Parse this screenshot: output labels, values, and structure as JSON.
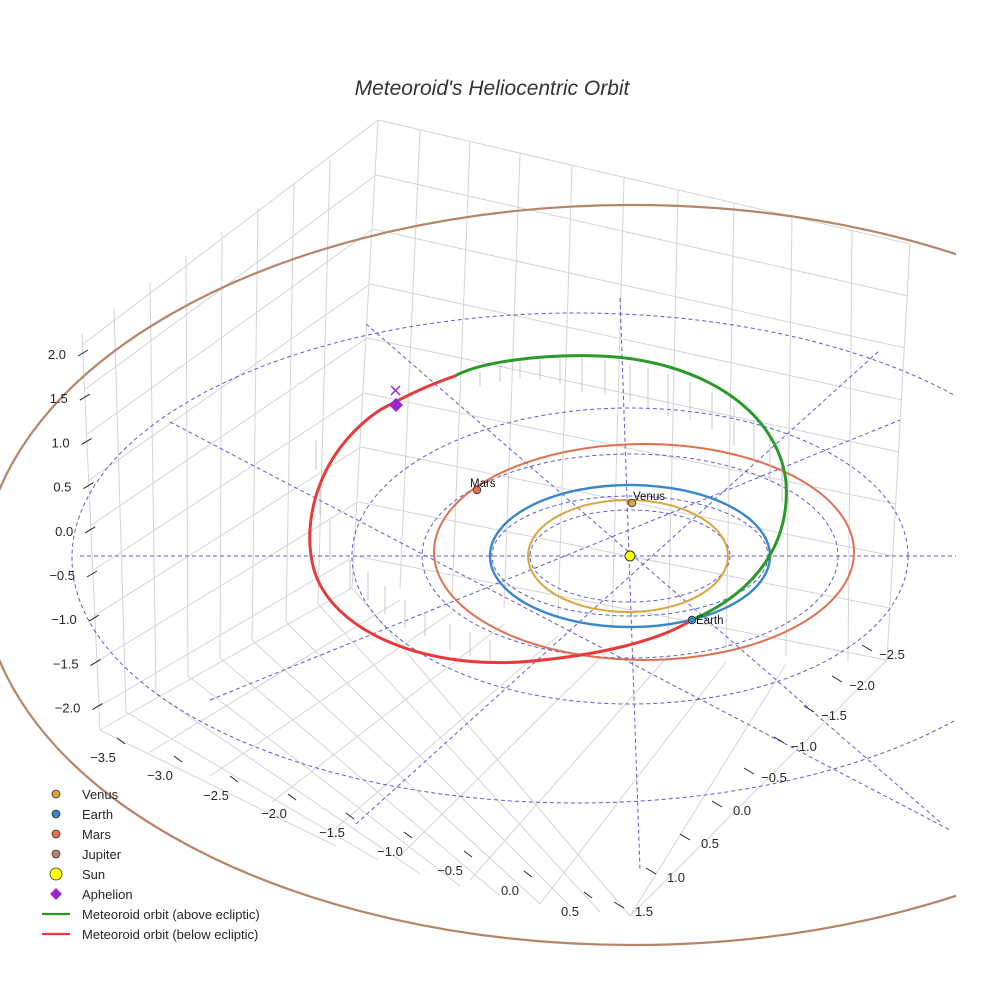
{
  "chart_data": {
    "type": "scatter",
    "projection": "3d",
    "title": "Meteoroid's Heliocentric Orbit",
    "xlabel": "",
    "ylabel": "",
    "zlabel": "",
    "x_ticks": [
      "−3.5",
      "−3.0",
      "−2.5",
      "−2.0",
      "−1.5",
      "−1.0",
      "−0.5",
      "0.0",
      "0.5"
    ],
    "y_ticks": [
      "−2.5",
      "−2.0",
      "−1.5",
      "−1.0",
      "−0.5",
      "0.0",
      "0.5",
      "1.0",
      "1.5"
    ],
    "z_ticks": [
      "2.0",
      "1.5",
      "1.0",
      "0.5",
      "0.0",
      "−0.5",
      "−1.0",
      "−1.5",
      "−2.0"
    ],
    "xlim": [
      -3.5,
      0.5
    ],
    "ylim": [
      -2.5,
      1.5
    ],
    "zlim": [
      -2.0,
      2.0
    ],
    "grid": true,
    "legend_position": "bottom-left",
    "planets": [
      {
        "name": "Venus",
        "label": "Venus",
        "orbit_radius_au": 0.72,
        "color": "#d9a441"
      },
      {
        "name": "Earth",
        "label": "Earth",
        "orbit_radius_au": 1.0,
        "color": "#3a86c8"
      },
      {
        "name": "Mars",
        "label": "Mars",
        "orbit_radius_au": 1.52,
        "color": "#e07050"
      },
      {
        "name": "Jupiter",
        "label": "",
        "orbit_radius_au": 5.2,
        "color": "#b5856a"
      }
    ],
    "sun": {
      "name": "Sun",
      "color": "#ffff00"
    },
    "aphelion": {
      "name": "Aphelion",
      "color": "#9c27c9"
    },
    "series": [
      {
        "name": "Meteoroid orbit (above ecliptic)",
        "color": "#2a9a2a"
      },
      {
        "name": "Meteoroid orbit (below ecliptic)",
        "color": "#e83a3a"
      }
    ],
    "legend": [
      {
        "label": "Venus",
        "marker": "circle",
        "color": "#d9a441"
      },
      {
        "label": "Earth",
        "marker": "circle",
        "color": "#3a86c8"
      },
      {
        "label": "Mars",
        "marker": "circle",
        "color": "#e07050"
      },
      {
        "label": "Jupiter",
        "marker": "circle",
        "color": "#b5856a"
      },
      {
        "label": "Sun",
        "marker": "circle",
        "color": "#ffff00"
      },
      {
        "label": "Aphelion",
        "marker": "diamond",
        "color": "#9c27c9"
      },
      {
        "label": "Meteoroid orbit (above ecliptic)",
        "marker": "line",
        "color": "#2a9a2a"
      },
      {
        "label": "Meteoroid orbit (below ecliptic)",
        "marker": "line",
        "color": "#e83a3a"
      }
    ],
    "reference_grid_color": "#5b5bd6"
  }
}
